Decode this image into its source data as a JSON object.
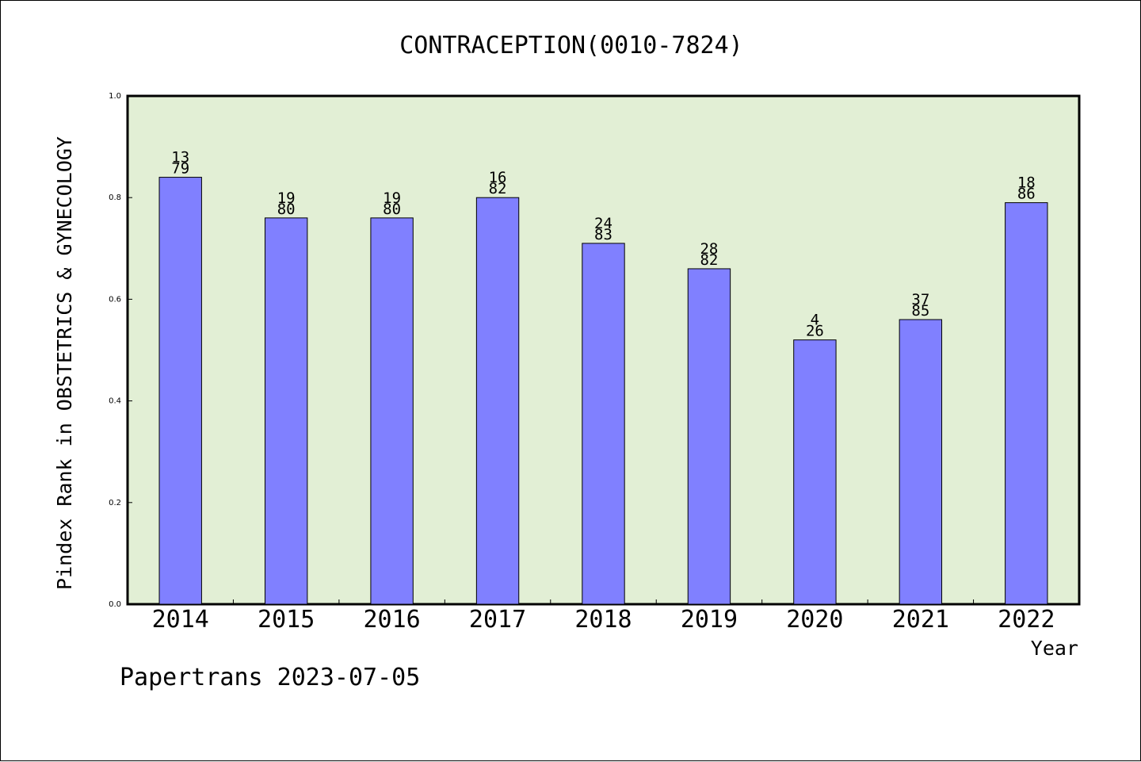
{
  "chart_data": {
    "type": "bar",
    "title": "CONTRACEPTION(0010-7824)",
    "xlabel": "Year",
    "ylabel": "Pindex Rank in OBSTETRICS & GYNECOLOGY",
    "ylim": [
      0.0,
      1.0
    ],
    "yticks": [
      "0.0",
      "0.2",
      "0.4",
      "0.6",
      "0.8",
      "1.0"
    ],
    "categories": [
      "2014",
      "2015",
      "2016",
      "2017",
      "2018",
      "2019",
      "2020",
      "2021",
      "2022"
    ],
    "values": [
      0.84,
      0.76,
      0.76,
      0.8,
      0.71,
      0.66,
      0.52,
      0.56,
      0.79
    ],
    "labels_top": [
      "13",
      "19",
      "19",
      "16",
      "24",
      "28",
      "4",
      "37",
      "18"
    ],
    "labels_bottom": [
      "79",
      "80",
      "80",
      "82",
      "83",
      "82",
      "26",
      "85",
      "86"
    ],
    "grid": false,
    "colors": {
      "plot_background": "#e2efd5",
      "bar_fill": "#8080ff",
      "bar_stroke": "#000000"
    }
  },
  "footer": "Papertrans 2023-07-05"
}
